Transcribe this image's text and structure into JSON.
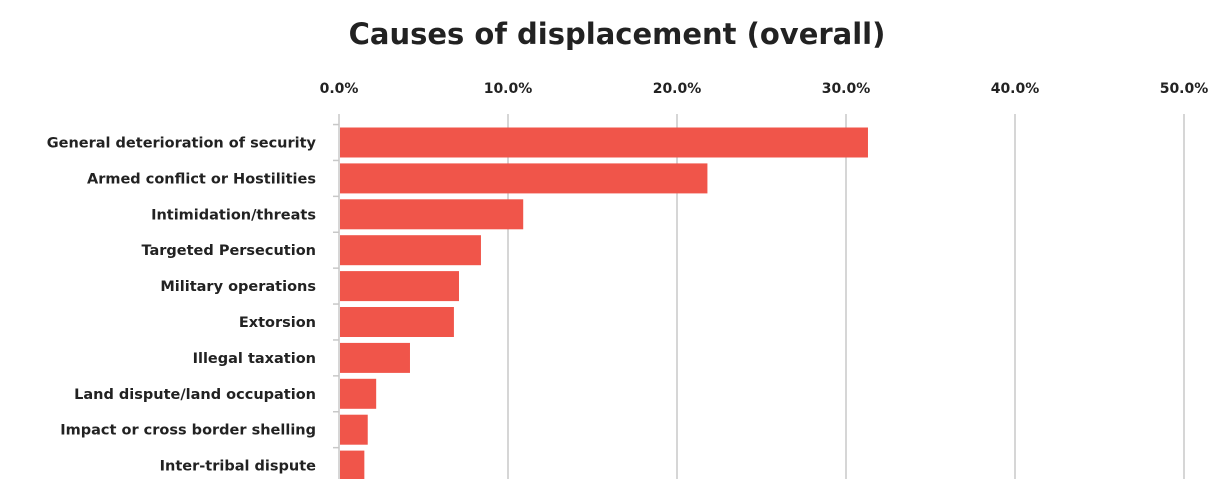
{
  "chart_data": {
    "type": "bar",
    "orientation": "horizontal",
    "title": "Causes of displacement (overall)",
    "xlabel": "",
    "ylabel": "",
    "xlim": [
      0,
      50
    ],
    "tick_values": [
      0,
      10,
      20,
      30,
      40,
      50
    ],
    "tick_labels": [
      "0.0%",
      "10.0%",
      "20.0%",
      "30.0%",
      "40.0%",
      "50.0%"
    ],
    "x_axis_position": "top",
    "grid": "vertical",
    "legend": "none",
    "bar_color": "#f0554a",
    "gridline_color": "#c8c8c8",
    "categories": [
      "General deterioration of security",
      "Armed conflict or Hostilities",
      "Intimidation/threats",
      "Targeted Persecution",
      "Military operations",
      "Extorsion",
      "Illegal taxation",
      "Land dispute/land occupation",
      "Impact or cross border shelling",
      "Inter-tribal dispute"
    ],
    "values": [
      31.3,
      21.8,
      10.9,
      8.4,
      7.1,
      6.8,
      4.2,
      2.2,
      1.7,
      1.5
    ]
  }
}
